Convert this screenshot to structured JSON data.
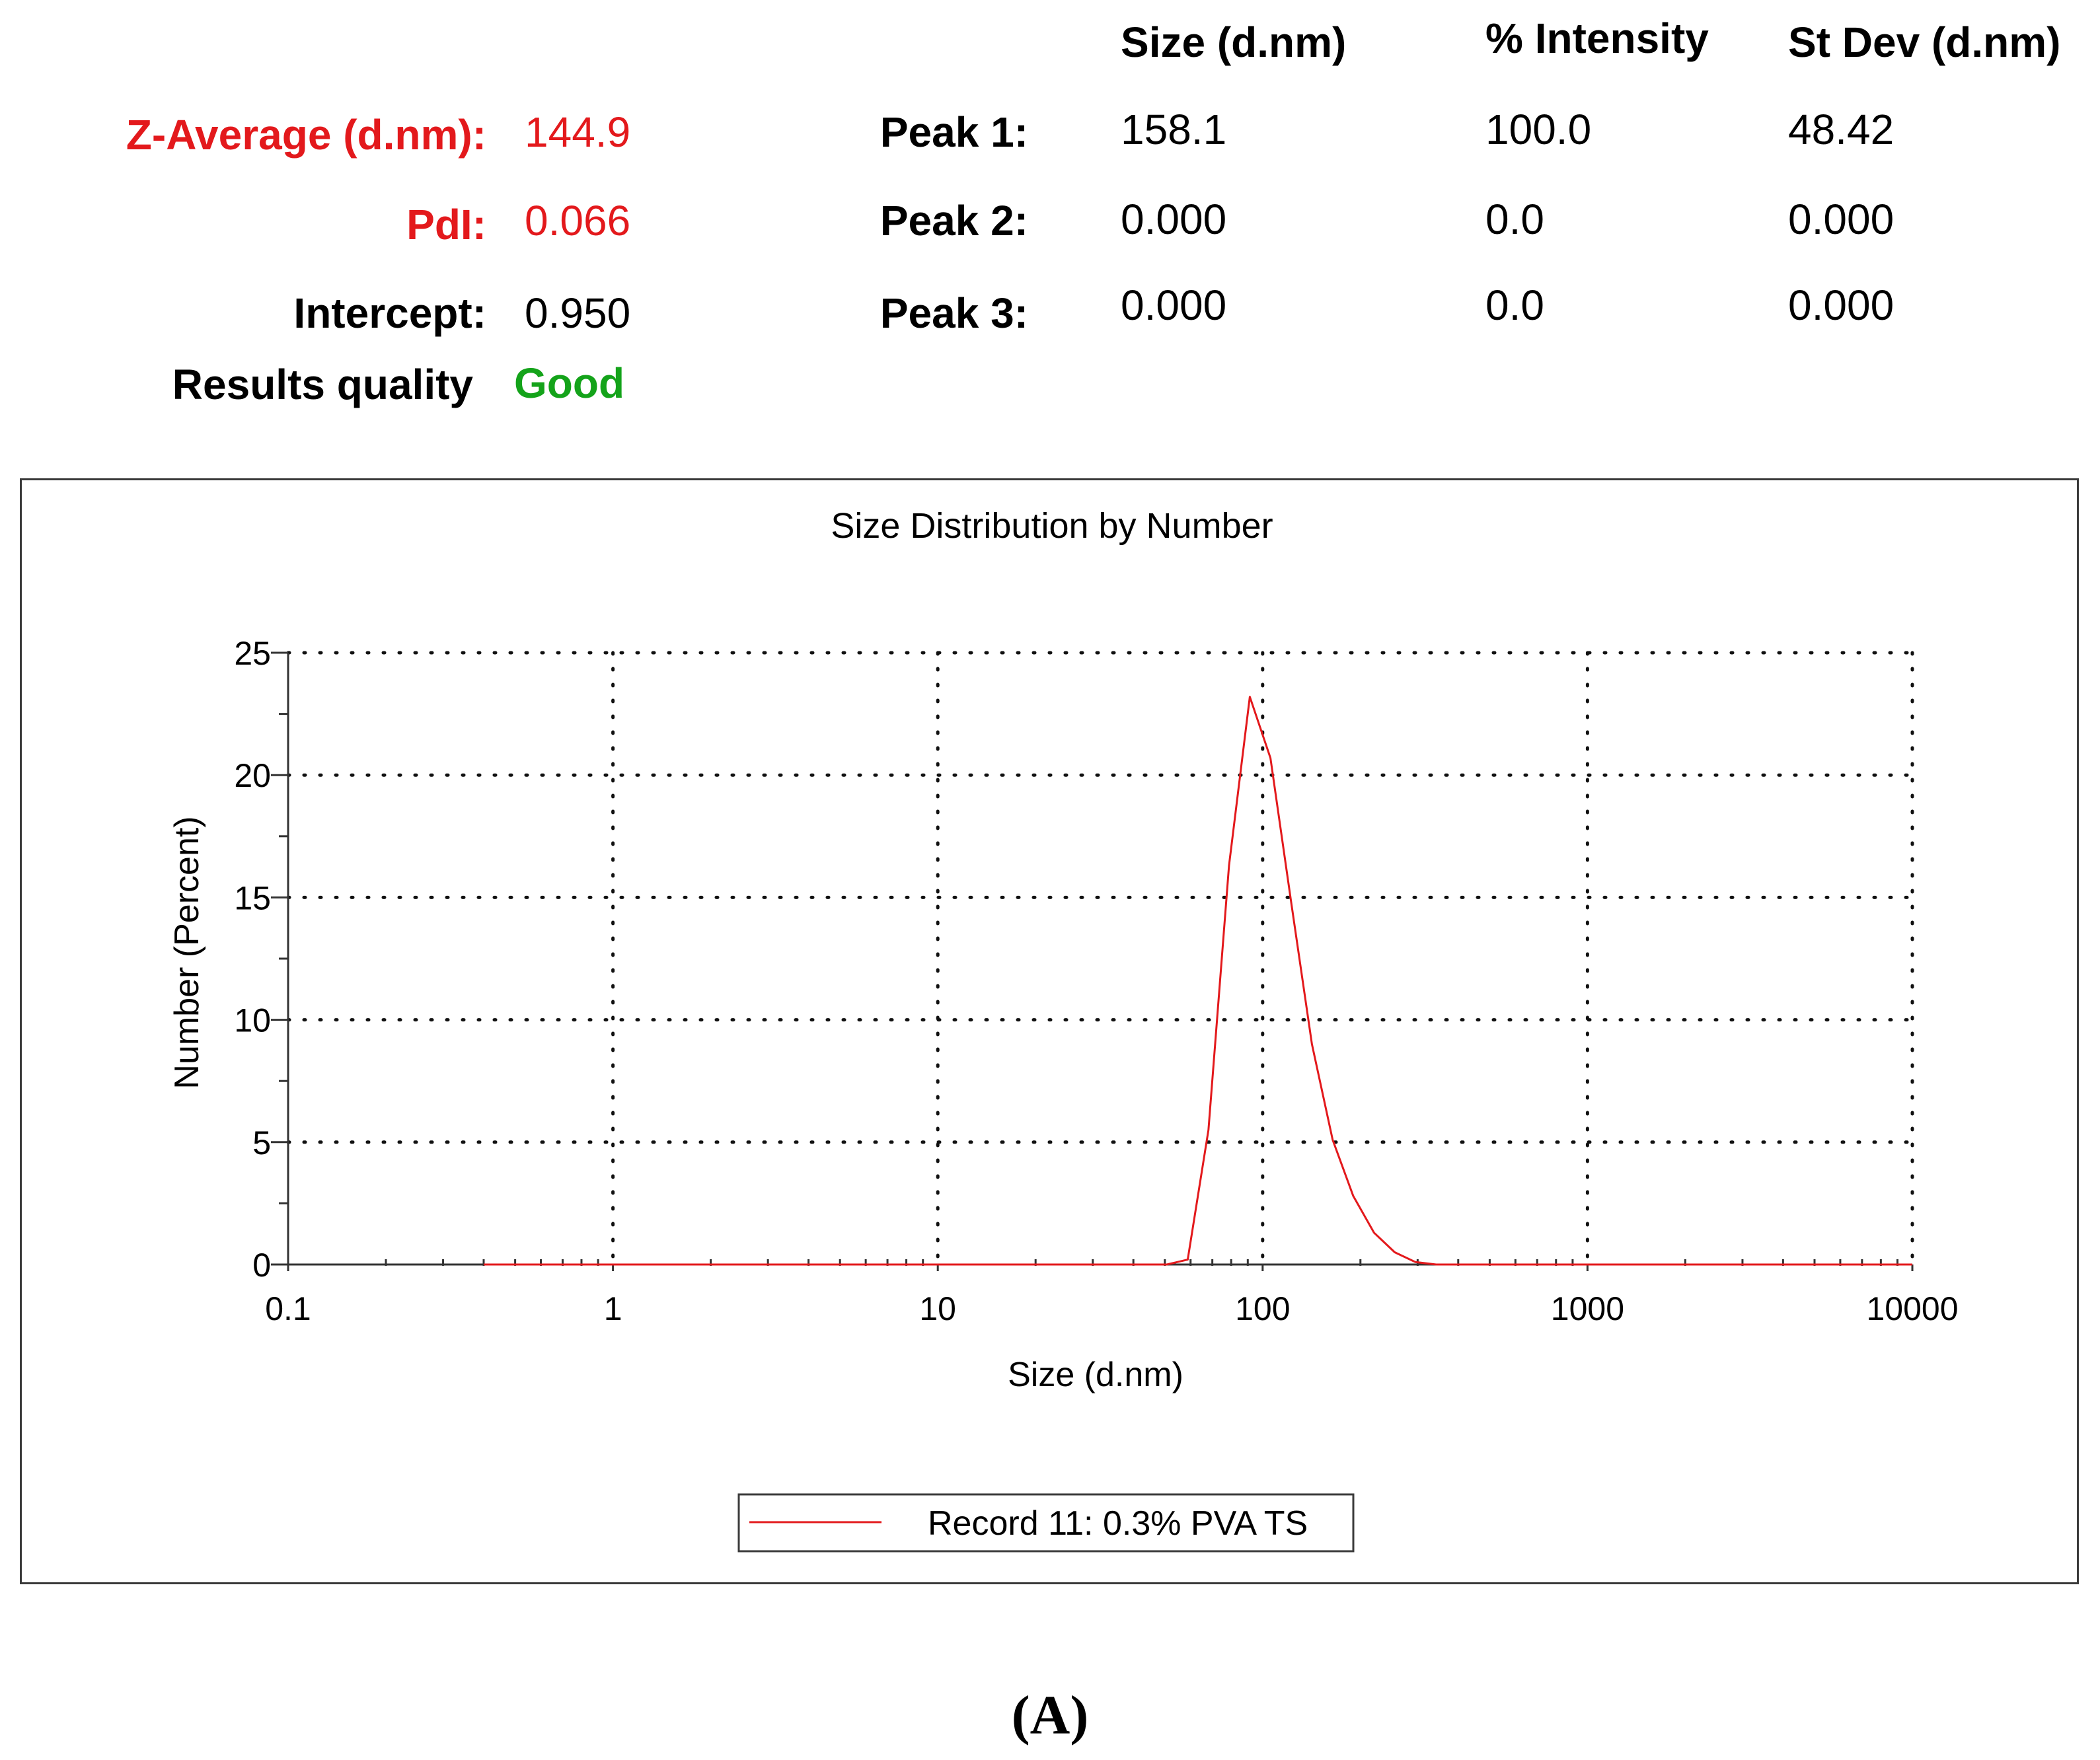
{
  "summary": {
    "z_average_label": "Z-Average (d.nm):",
    "z_average_value": "144.9",
    "pdi_label": "PdI:",
    "pdi_value": "0.066",
    "intercept_label": "Intercept:",
    "intercept_value": "0.950",
    "quality_label": "Results quality",
    "quality_value": "Good"
  },
  "peaks_table": {
    "headers": [
      "Size (d.nm)",
      "% Intensity",
      "St Dev (d.nm)"
    ],
    "rows": [
      {
        "label": "Peak 1:",
        "size": "158.1",
        "intensity": "100.0",
        "stdev": "48.42"
      },
      {
        "label": "Peak 2:",
        "size": "0.000",
        "intensity": "0.0",
        "stdev": "0.000"
      },
      {
        "label": "Peak 3:",
        "size": "0.000",
        "intensity": "0.0",
        "stdev": "0.000"
      }
    ]
  },
  "chart_data": {
    "type": "line",
    "title": "Size Distribution by Number",
    "xlabel": "Size (d.nm)",
    "ylabel": "Number (Percent)",
    "x_scale": "log",
    "xlim": [
      0.1,
      10000
    ],
    "ylim": [
      0,
      25
    ],
    "x_ticks": [
      "0.1",
      "1",
      "10",
      "100",
      "1000",
      "10000"
    ],
    "x_tick_values": [
      0.1,
      1,
      10,
      100,
      1000,
      10000
    ],
    "y_ticks": [
      "0",
      "5",
      "10",
      "15",
      "20",
      "25"
    ],
    "y_tick_values": [
      0,
      5,
      10,
      15,
      20,
      25
    ],
    "grid": true,
    "legend_position": "bottom-center",
    "series": [
      {
        "name": "Record 11: 0.3% PVA TS",
        "color": "#e3191c",
        "x": [
          0.4,
          1,
          10,
          40,
          50.7,
          58.8,
          68.1,
          78.8,
          91.3,
          105.7,
          122.4,
          141.8,
          164.2,
          190.1,
          220.2,
          255.0,
          295.3,
          342.0,
          396.1,
          1000,
          10000
        ],
        "y": [
          0,
          0,
          0,
          0,
          0,
          0.2,
          5.5,
          16.3,
          23.2,
          20.7,
          14.8,
          9.0,
          5.1,
          2.8,
          1.3,
          0.5,
          0.1,
          0,
          0,
          0,
          0
        ]
      }
    ]
  },
  "panel_label": "(A)"
}
